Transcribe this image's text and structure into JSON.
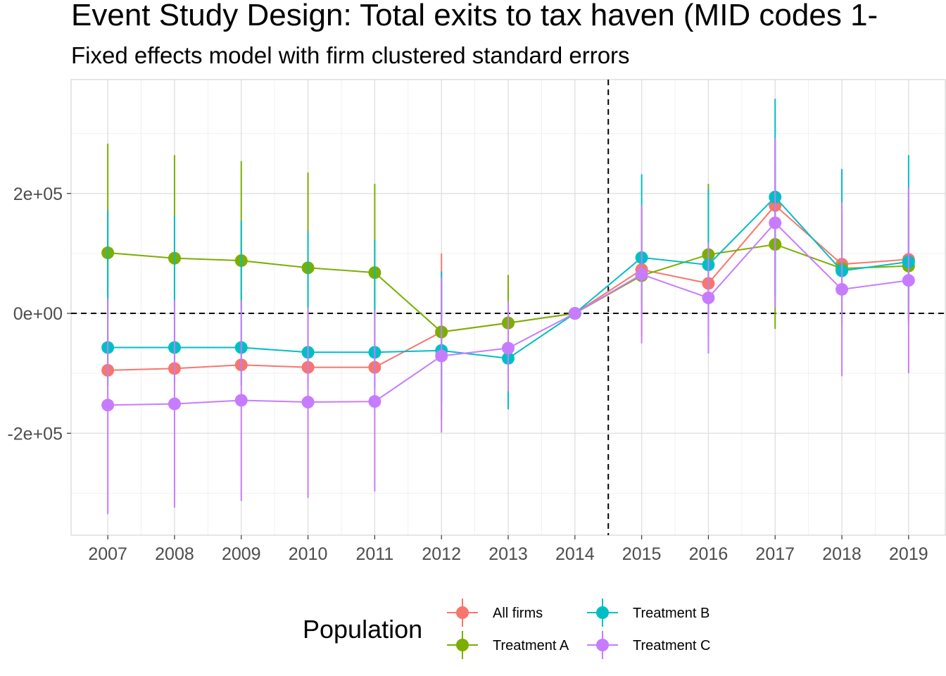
{
  "chart_data": {
    "type": "line",
    "title": "Event Study Design: Total exits to tax haven (MID codes 1-",
    "subtitle": "Fixed effects model with firm clustered standard errors",
    "xlabel": "",
    "ylabel": "",
    "x": [
      "2007",
      "2008",
      "2009",
      "2010",
      "2011",
      "2012",
      "2013",
      "2014",
      "2015",
      "2016",
      "2017",
      "2018",
      "2019"
    ],
    "y_ticks": [
      -200000,
      0,
      200000
    ],
    "y_tick_labels": [
      "-2e+05",
      "0e+00",
      "2e+05"
    ],
    "ylim": [
      -370000,
      390000
    ],
    "reference_lines": {
      "y": 0,
      "x_between": [
        "2014",
        "2015"
      ]
    },
    "grid": true,
    "legend": {
      "title": "Population",
      "position": "bottom"
    },
    "series": [
      {
        "name": "All firms",
        "color": "#F8766D",
        "values": [
          -95000,
          -92000,
          -86000,
          -90000,
          -90000,
          -31000,
          -16000,
          0,
          73000,
          50000,
          180000,
          82000,
          90000
        ],
        "ci_low": [
          -95000,
          -92000,
          -86000,
          -90000,
          -90000,
          -178000,
          -132000,
          0,
          -38000,
          -38000,
          68000,
          -28000,
          -12000
        ],
        "ci_high": [
          -95000,
          -92000,
          -86000,
          -90000,
          -90000,
          100000,
          58000,
          0,
          175000,
          122000,
          290000,
          170000,
          190000
        ]
      },
      {
        "name": "Treatment A",
        "color": "#7CAE00",
        "values": [
          101000,
          92000,
          88000,
          76000,
          68000,
          -31000,
          -16000,
          0,
          63000,
          98000,
          115000,
          75000,
          79000
        ],
        "ci_low": [
          18000,
          10000,
          8000,
          2000,
          -5000,
          -60000,
          -40000,
          0,
          0,
          20000,
          -26000,
          -20000,
          -18000
        ],
        "ci_high": [
          283000,
          264000,
          254000,
          235000,
          216000,
          60000,
          64000,
          0,
          150000,
          216000,
          250000,
          170000,
          175000
        ]
      },
      {
        "name": "Treatment B",
        "color": "#00BFC4",
        "values": [
          -57000,
          -57000,
          -57000,
          -65000,
          -65000,
          -62000,
          -75000,
          0,
          93000,
          81000,
          194000,
          71000,
          86000
        ],
        "ci_low": [
          -120000,
          -120000,
          -120000,
          -125000,
          -125000,
          -150000,
          -160000,
          0,
          20000,
          0,
          30000,
          -20000,
          0
        ],
        "ci_high": [
          172000,
          163000,
          155000,
          137000,
          123000,
          70000,
          20000,
          0,
          232000,
          207000,
          358000,
          241000,
          264000
        ]
      },
      {
        "name": "Treatment C",
        "color": "#C77CFF",
        "values": [
          -153000,
          -151000,
          -145000,
          -148000,
          -147000,
          -71000,
          -58000,
          0,
          65000,
          26000,
          151000,
          40000,
          55000
        ],
        "ci_low": [
          -335000,
          -324000,
          -313000,
          -308000,
          -297000,
          -199000,
          -130000,
          0,
          -50000,
          -67000,
          10000,
          -105000,
          -100000
        ],
        "ci_high": [
          25000,
          22000,
          22000,
          10000,
          5000,
          60000,
          20000,
          0,
          180000,
          118000,
          292000,
          185000,
          210000
        ]
      }
    ]
  }
}
